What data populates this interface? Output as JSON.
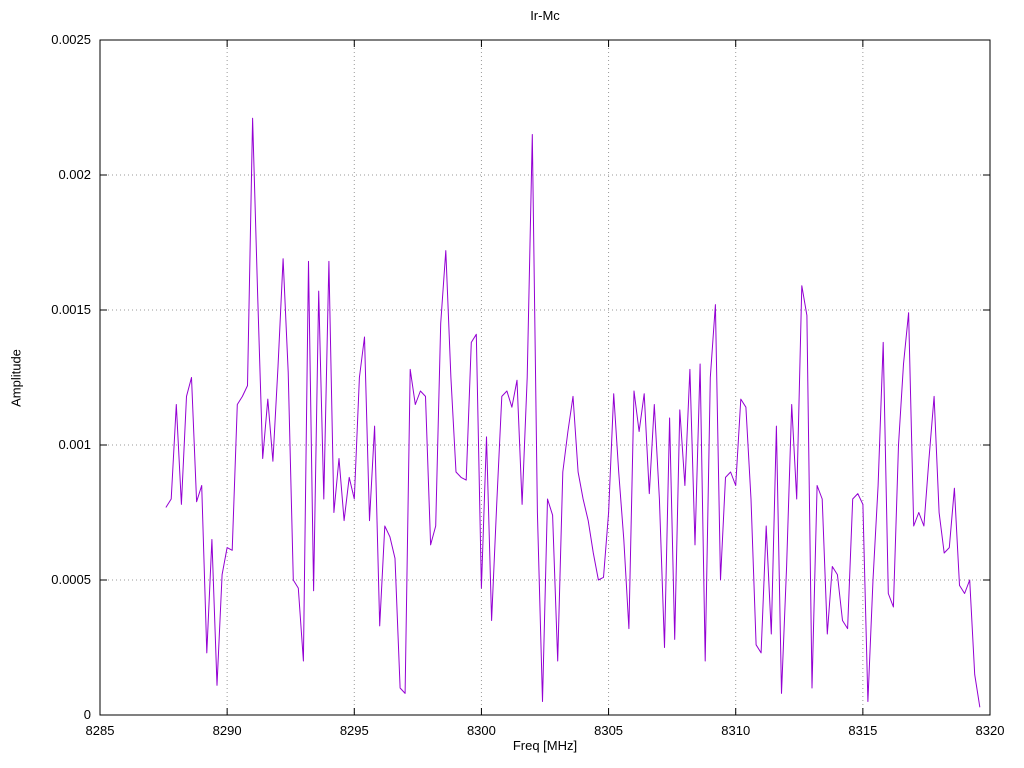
{
  "chart_data": {
    "type": "line",
    "title": "Ir-Mc",
    "xlabel": "Freq [MHz]",
    "ylabel": "Amplitude",
    "xlim": [
      8285,
      8320
    ],
    "ylim": [
      0,
      0.0025
    ],
    "x_ticks": [
      8285,
      8290,
      8295,
      8300,
      8305,
      8310,
      8315,
      8320
    ],
    "x_tick_labels": [
      "8285",
      "8290",
      "8295",
      "8300",
      "8305",
      "8310",
      "8315",
      "8320"
    ],
    "y_ticks": [
      0,
      0.0005,
      0.001,
      0.0015,
      0.002,
      0.0025
    ],
    "y_tick_labels": [
      "0",
      "0.0005",
      "0.001",
      "0.0015",
      "0.002",
      "0.0025"
    ],
    "grid": "dotted",
    "legend": "none",
    "colors": {
      "line": "#9400d3",
      "grid": "#9a9a9a",
      "axis": "#000000",
      "background": "#ffffff",
      "text": "#000000"
    },
    "series": [
      {
        "name": "Ir-Mc",
        "x_start": 8287.6,
        "x_step": 0.2,
        "y": [
          0.00077,
          0.0008,
          0.00115,
          0.00078,
          0.00118,
          0.00125,
          0.00079,
          0.00085,
          0.00023,
          0.00065,
          0.00011,
          0.00052,
          0.00062,
          0.00061,
          0.00115,
          0.00118,
          0.00122,
          0.00221,
          0.00155,
          0.00095,
          0.00117,
          0.00094,
          0.00129,
          0.00169,
          0.00127,
          0.0005,
          0.00047,
          0.0002,
          0.00168,
          0.00046,
          0.00157,
          0.0008,
          0.00168,
          0.00075,
          0.00095,
          0.00072,
          0.00088,
          0.0008,
          0.00125,
          0.0014,
          0.00072,
          0.00107,
          0.00033,
          0.0007,
          0.00066,
          0.00058,
          0.0001,
          8e-05,
          0.00128,
          0.00115,
          0.0012,
          0.00118,
          0.00063,
          0.0007,
          0.00145,
          0.00172,
          0.00125,
          0.0009,
          0.00088,
          0.00087,
          0.00138,
          0.00141,
          0.00047,
          0.00103,
          0.00035,
          0.00078,
          0.00118,
          0.0012,
          0.00114,
          0.00124,
          0.00078,
          0.00125,
          0.00215,
          0.00075,
          5e-05,
          0.0008,
          0.00074,
          0.0002,
          0.0009,
          0.00105,
          0.00118,
          0.0009,
          0.0008,
          0.00072,
          0.0006,
          0.0005,
          0.00051,
          0.00075,
          0.00119,
          0.0009,
          0.00065,
          0.00032,
          0.0012,
          0.00105,
          0.00119,
          0.00082,
          0.00115,
          0.0008,
          0.00025,
          0.0011,
          0.00028,
          0.00113,
          0.00085,
          0.00128,
          0.00063,
          0.0013,
          0.0002,
          0.00125,
          0.00152,
          0.0005,
          0.00088,
          0.0009,
          0.00085,
          0.00117,
          0.00114,
          0.0008,
          0.00026,
          0.00023,
          0.0007,
          0.0003,
          0.00107,
          8e-05,
          0.00055,
          0.00115,
          0.0008,
          0.00159,
          0.00148,
          0.0001,
          0.00085,
          0.0008,
          0.0003,
          0.00055,
          0.00052,
          0.00035,
          0.00032,
          0.0008,
          0.00082,
          0.00078,
          5e-05,
          0.0005,
          0.00085,
          0.00138,
          0.00045,
          0.0004,
          0.001,
          0.0013,
          0.00149,
          0.0007,
          0.00075,
          0.0007,
          0.00095,
          0.00118,
          0.00075,
          0.0006,
          0.00062,
          0.00084,
          0.00048,
          0.00045,
          0.0005,
          0.00015,
          3e-05
        ]
      }
    ]
  }
}
